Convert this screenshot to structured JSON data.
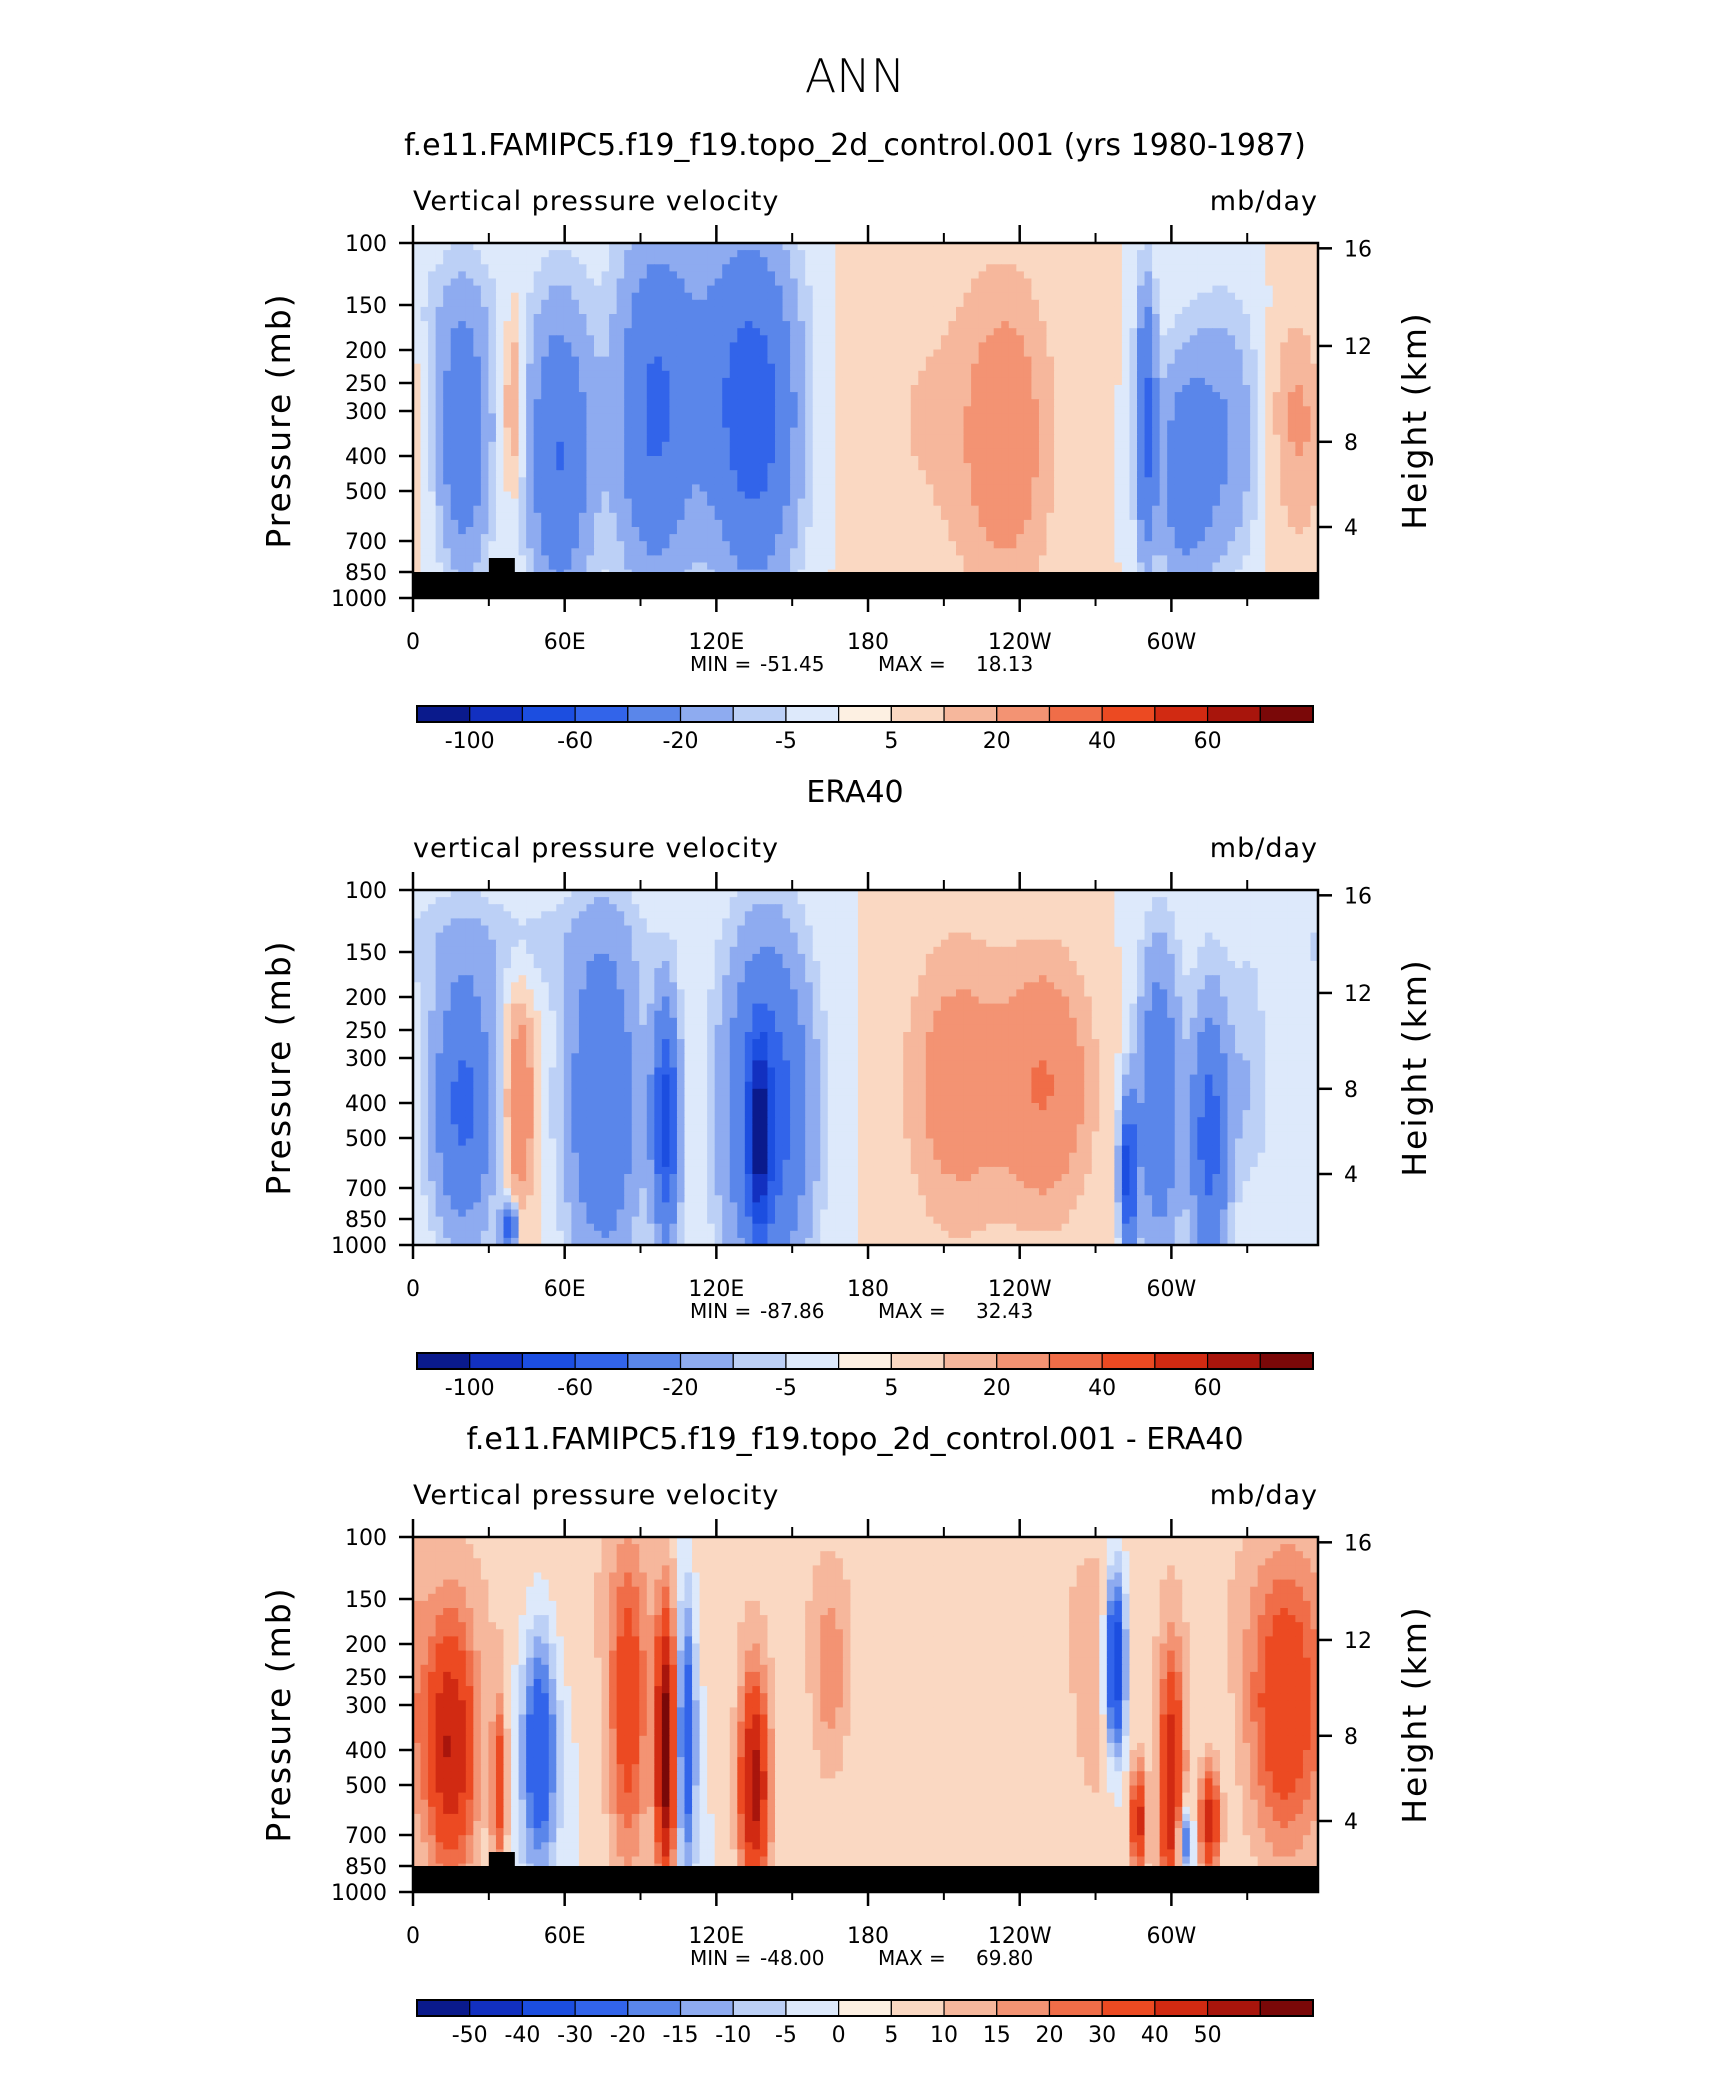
{
  "figure": {
    "title": "ANN"
  },
  "chart_data": [
    {
      "type": "heatmap",
      "title": "f.e11.FAMIPC5.f19_f19.topo_2d_control.001 (yrs 1980-1987)",
      "left_label": "Vertical pressure velocity",
      "units": "mb/day",
      "ylabel": "Pressure (mb)",
      "ylabel_right": "Height (km)",
      "x_ticks": [
        "0",
        "60E",
        "120E",
        "180",
        "120W",
        "60W"
      ],
      "y_ticks": [
        "100",
        "150",
        "200",
        "250",
        "300",
        "400",
        "500",
        "700",
        "850",
        "1000"
      ],
      "y_ticks_right": [
        "16",
        "12",
        "8",
        "4"
      ],
      "min_label": "MIN =",
      "min": "-51.45",
      "max_label": "MAX =",
      "max": "18.13",
      "has_topography": true,
      "colorbar_labels": [
        "-100",
        "-60",
        "-20",
        "-5",
        "5",
        "20",
        "40",
        "60"
      ],
      "colorbar_colors": [
        "#0a1a8c",
        "#1230c0",
        "#1c4ee0",
        "#3264ea",
        "#5a86ea",
        "#8eabf0",
        "#bcd0f6",
        "#dde9fb",
        "#fdf0e2",
        "#fad8c2",
        "#f6b79c",
        "#f39373",
        "#f06d48",
        "#ec4a22",
        "#d12a12",
        "#a8150c",
        "#7a0808"
      ],
      "notes": "levels approx: <-100, -80, -60, -40, -20, -10, -5, 0, 5, 10, 20, 30, 40, 50, 60, >"
    },
    {
      "type": "heatmap",
      "title": "ERA40",
      "left_label": "vertical pressure velocity",
      "units": "mb/day",
      "ylabel": "Pressure (mb)",
      "ylabel_right": "Height (km)",
      "x_ticks": [
        "0",
        "60E",
        "120E",
        "180",
        "120W",
        "60W"
      ],
      "y_ticks": [
        "100",
        "150",
        "200",
        "250",
        "300",
        "400",
        "500",
        "700",
        "850",
        "1000"
      ],
      "y_ticks_right": [
        "16",
        "12",
        "8",
        "4"
      ],
      "min_label": "MIN =",
      "min": "-87.86",
      "max_label": "MAX =",
      "max": "32.43",
      "has_topography": false,
      "colorbar_labels": [
        "-100",
        "-60",
        "-20",
        "-5",
        "5",
        "20",
        "40",
        "60"
      ],
      "colorbar_colors": [
        "#0a1a8c",
        "#1230c0",
        "#1c4ee0",
        "#3264ea",
        "#5a86ea",
        "#8eabf0",
        "#bcd0f6",
        "#dde9fb",
        "#fdf0e2",
        "#fad8c2",
        "#f6b79c",
        "#f39373",
        "#f06d48",
        "#ec4a22",
        "#d12a12",
        "#a8150c",
        "#7a0808"
      ]
    },
    {
      "type": "heatmap",
      "title": "f.e11.FAMIPC5.f19_f19.topo_2d_control.001 - ERA40",
      "left_label": "Vertical pressure velocity",
      "units": "mb/day",
      "ylabel": "Pressure (mb)",
      "ylabel_right": "Height (km)",
      "x_ticks": [
        "0",
        "60E",
        "120E",
        "180",
        "120W",
        "60W"
      ],
      "y_ticks": [
        "100",
        "150",
        "200",
        "250",
        "300",
        "400",
        "500",
        "700",
        "850",
        "1000"
      ],
      "y_ticks_right": [
        "16",
        "12",
        "8",
        "4"
      ],
      "min_label": "MIN =",
      "min": "-48.00",
      "max_label": "MAX =",
      "max": "69.80",
      "has_topography": true,
      "colorbar_labels": [
        "-50",
        "-40",
        "-30",
        "-20",
        "-15",
        "-10",
        "-5",
        "0",
        "5",
        "10",
        "15",
        "20",
        "30",
        "40",
        "50"
      ],
      "colorbar_colors": [
        "#0a1a8c",
        "#1230c0",
        "#1c4ee0",
        "#3264ea",
        "#5a86ea",
        "#8eabf0",
        "#bcd0f6",
        "#dde9fb",
        "#fdf0e2",
        "#fad8c2",
        "#f6b79c",
        "#f39373",
        "#f06d48",
        "#ec4a22",
        "#d12a12",
        "#a8150c",
        "#7a0808"
      ]
    }
  ]
}
